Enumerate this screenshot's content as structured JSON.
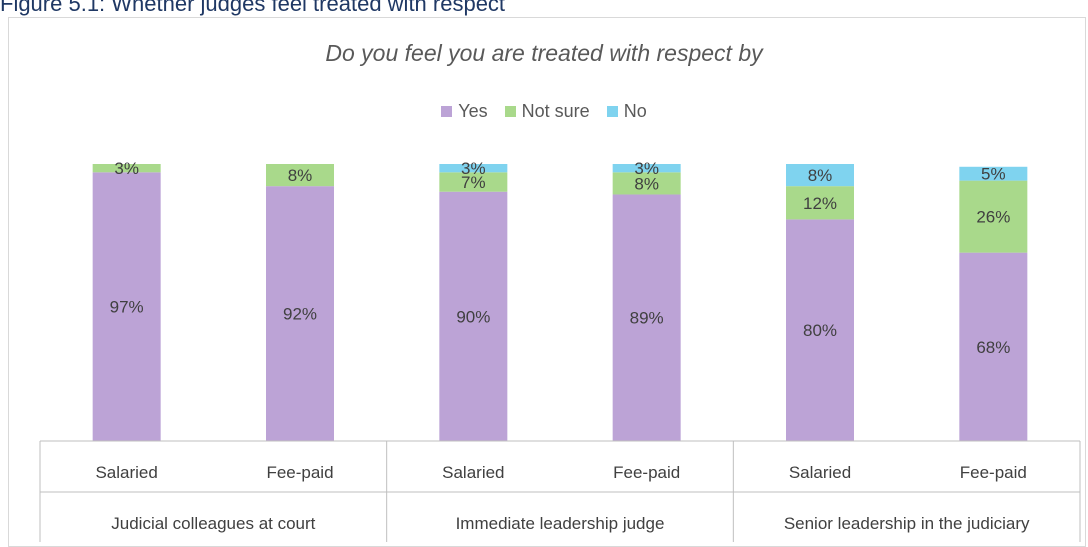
{
  "figure_caption": "Figure 5.1: Whether judges feel treated with respect",
  "colors": {
    "Yes": "#bca3d6",
    "Not sure": "#a9d98b",
    "No": "#7fd3ef",
    "axis": "#bfbfbf",
    "label": "#404040"
  },
  "chart_data": {
    "type": "bar",
    "stacked": true,
    "title": "Do you feel you are treated with respect by",
    "legend_position": "top",
    "ylim": [
      0,
      100
    ],
    "grid": false,
    "groups": [
      "Judicial colleagues at court",
      "Immediate leadership judge",
      "Senior leadership in the judiciary"
    ],
    "categories": [
      "Salaried",
      "Fee-paid",
      "Salaried",
      "Fee-paid",
      "Salaried",
      "Fee-paid"
    ],
    "series": [
      {
        "name": "Yes",
        "values": [
          97,
          92,
          90,
          89,
          80,
          68
        ],
        "labels": [
          "97%",
          "92%",
          "90%",
          "89%",
          "80%",
          "68%"
        ]
      },
      {
        "name": "Not sure",
        "values": [
          3,
          8,
          7,
          8,
          12,
          26
        ],
        "labels": [
          "3%",
          "8%",
          "7%",
          "8%",
          "12%",
          "26%"
        ]
      },
      {
        "name": "No",
        "values": [
          0,
          0,
          3,
          3,
          8,
          5
        ],
        "labels": [
          "",
          "",
          "3%",
          "3%",
          "8%",
          "5%"
        ]
      }
    ]
  }
}
